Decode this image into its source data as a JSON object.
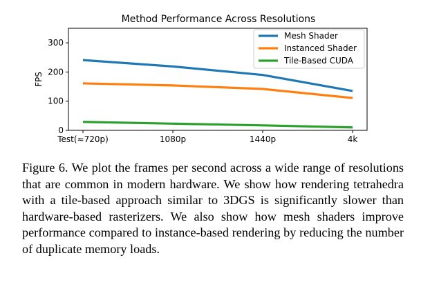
{
  "chart_data": {
    "type": "line",
    "title": "Method Performance Across Resolutions",
    "xlabel": "",
    "ylabel": "FPS",
    "categories": [
      "Test(≈720p)",
      "1080p",
      "1440p",
      "4k"
    ],
    "ylim": [
      0,
      350
    ],
    "yticks": [
      0,
      100,
      200,
      300
    ],
    "grid": false,
    "legend_position": "top-right",
    "series": [
      {
        "name": "Mesh Shader",
        "color": "#1f77b4",
        "values": [
          241,
          219,
          190,
          135
        ]
      },
      {
        "name": "Instanced Shader",
        "color": "#ff7f0e",
        "values": [
          161,
          154,
          142,
          111
        ]
      },
      {
        "name": "Tile-Based CUDA",
        "color": "#2ca02c",
        "values": [
          29,
          23,
          17,
          10
        ]
      }
    ]
  },
  "caption": {
    "text": "Figure 6. We plot the frames per second across a wide range of resolutions that are common in modern hardware. We show how rendering tetrahedra with a tile-based approach similar to 3DGS is significantly slower than hardware-based rasterizers. We also show how mesh shaders improve performance compared to instance-based rendering by reducing the number of duplicate memory loads."
  }
}
